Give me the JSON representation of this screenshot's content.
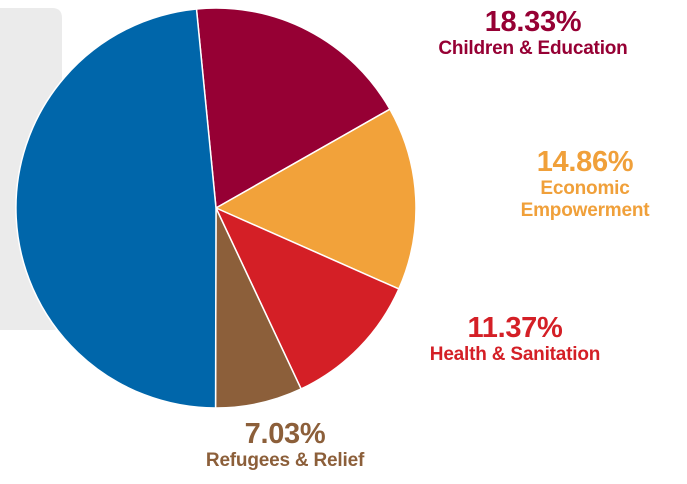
{
  "colors": {
    "background_panel": "#ebebeb"
  },
  "chart_data": {
    "type": "pie",
    "title": "",
    "start_angle_deg": -5.6,
    "direction": "clockwise",
    "slices": [
      {
        "name": "Children & Education",
        "pct_label": "18.33%",
        "value": 18.33,
        "color": "#960034",
        "label_color": "#960034"
      },
      {
        "name": "Economic Empowerment",
        "pct_label": "14.86%",
        "value": 14.86,
        "color": "#f2a23a",
        "label_color": "#f0a03a"
      },
      {
        "name": "Health & Sanitation",
        "pct_label": "11.37%",
        "value": 11.37,
        "color": "#d41f26",
        "label_color": "#d41f26"
      },
      {
        "name": "Refugees & Relief",
        "pct_label": "7.03%",
        "value": 7.03,
        "color": "#8c5f3a",
        "label_color": "#8c5f3a"
      },
      {
        "name": "",
        "pct_label": "",
        "value": 48.41,
        "color": "#0066aa",
        "label_color": ""
      }
    ],
    "labels": {
      "children": {
        "pct": "18.33%",
        "name": "Children & Education"
      },
      "economic": {
        "pct": "14.86%",
        "line1": "Economic",
        "line2": "Empowerment"
      },
      "health": {
        "pct": "11.37%",
        "name": "Health & Sanitation"
      },
      "refugees": {
        "pct": "7.03%",
        "name": "Refugees & Relief"
      }
    }
  }
}
